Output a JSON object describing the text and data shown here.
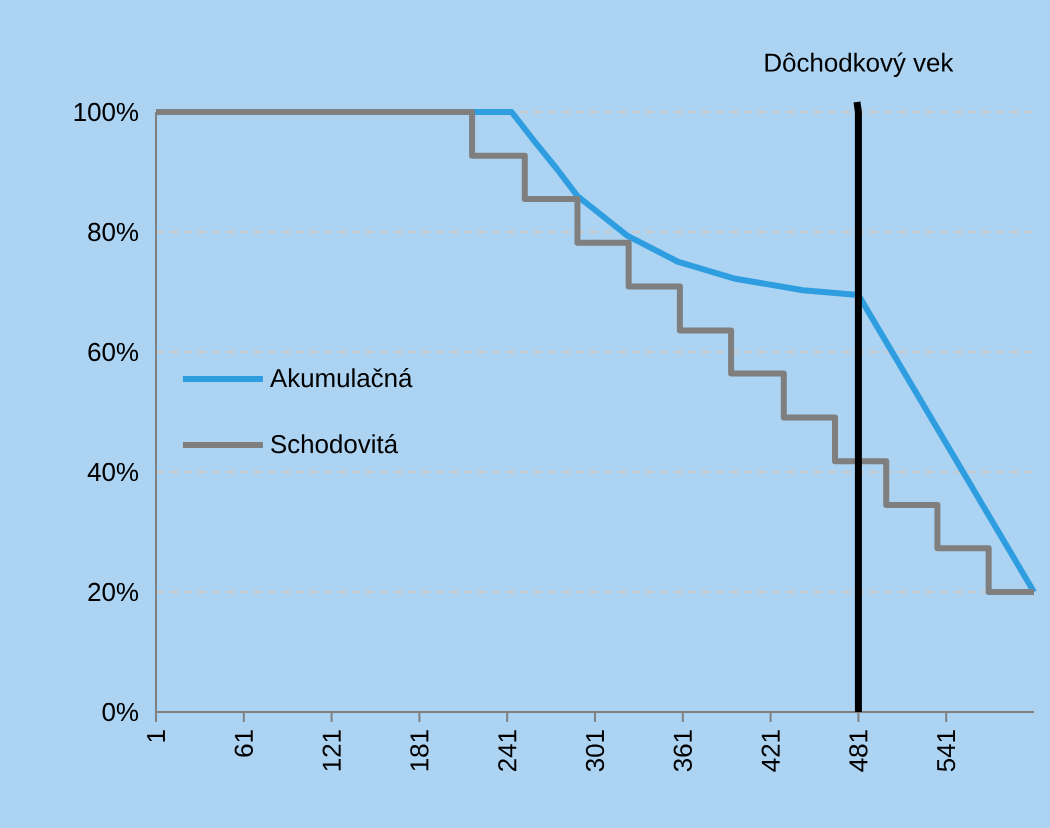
{
  "chart_data": {
    "type": "line",
    "series": [
      {
        "name": "Akumulačná",
        "color": "#2e9ee0",
        "x": [
          1,
          244,
          260,
          275,
          289,
          323,
          358,
          397,
          443,
          481,
          601
        ],
        "values": [
          100,
          100,
          95,
          90.5,
          86,
          79.4,
          75,
          72.2,
          70.3,
          69.5,
          20
        ]
      },
      {
        "name": "Schodovitá",
        "type": "step",
        "color": "#7f7f7f",
        "x": [
          1,
          217,
          253,
          289,
          324,
          359,
          394,
          430,
          465,
          500,
          535,
          570,
          601
        ],
        "values": [
          100,
          92.7,
          85.5,
          78.2,
          70.9,
          63.6,
          56.4,
          49.1,
          41.8,
          34.5,
          27.3,
          20,
          20
        ]
      }
    ],
    "xlim": [
      1,
      601
    ],
    "xticks": [
      1,
      61,
      121,
      181,
      241,
      301,
      361,
      421,
      481,
      541
    ],
    "ylim": [
      0,
      100
    ],
    "yticks": [
      {
        "value": 0,
        "label": "0%"
      },
      {
        "value": 20,
        "label": "20%"
      },
      {
        "value": 40,
        "label": "40%"
      },
      {
        "value": 60,
        "label": "60%"
      },
      {
        "value": 80,
        "label": "80%"
      },
      {
        "value": 100,
        "label": "100%"
      }
    ],
    "ref_lines": [
      {
        "axis": "x",
        "value": 481,
        "label": "Dôchodkový vek",
        "color": "#000000"
      }
    ],
    "grid": "y",
    "legend": "left",
    "marker": "none",
    "line_style": "solid"
  }
}
